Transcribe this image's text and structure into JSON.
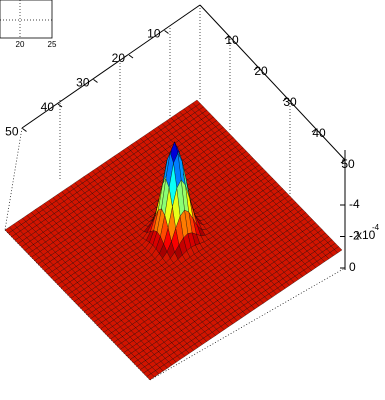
{
  "inset": {
    "xticks": [
      20,
      25
    ]
  },
  "chart_data": {
    "type": "surface",
    "xticks": [
      10,
      20,
      30,
      40,
      50
    ],
    "yticks": [
      10,
      20,
      30,
      40,
      50
    ],
    "zticks": [
      -4,
      -2,
      0
    ],
    "z_multiplier": "x10",
    "z_exponent": "-4",
    "colormap": "jet"
  }
}
